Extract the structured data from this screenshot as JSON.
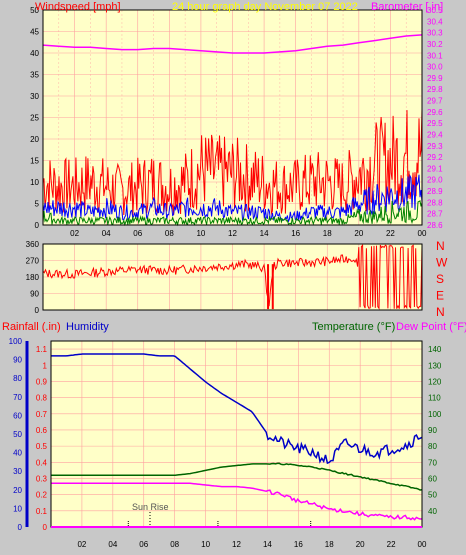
{
  "header": {
    "left_title": "Windspeed [mph]",
    "center_title": "24 hour graph day   November 07 2022",
    "right_title": "Barometer [.in]"
  },
  "colors": {
    "background": "#c8c8c8",
    "plot_bg": "#ffffc8",
    "grid": "#ffa0a0",
    "wind": "#ff0000",
    "gust": "#ff0000",
    "avg_wind": "#0000ff",
    "low_wind": "#008000",
    "barometer": "#ff00ff",
    "humidity": "#0000c8",
    "temperature": "#006400",
    "dew_point": "#ff00ff",
    "rainfall": "#ff0000",
    "title_yellow": "#ffff00"
  },
  "x_tick_labels": [
    "02",
    "04",
    "06",
    "08",
    "10",
    "12",
    "14",
    "16",
    "18",
    "20",
    "22",
    "00"
  ],
  "chart_data": [
    {
      "type": "line",
      "name": "wind-barometer",
      "x_hours": [
        0,
        1,
        2,
        3,
        4,
        5,
        6,
        7,
        8,
        9,
        10,
        11,
        12,
        13,
        14,
        15,
        16,
        17,
        18,
        19,
        20,
        21,
        22,
        23,
        24
      ],
      "series": [
        {
          "name": "Windspeed [mph]",
          "axis": "left",
          "values": [
            10,
            9,
            9,
            10,
            9,
            8,
            9,
            10,
            9,
            10,
            13,
            12,
            12,
            11,
            10,
            9,
            9,
            10,
            10,
            9,
            12,
            14,
            15,
            16,
            17
          ]
        },
        {
          "name": "Avg",
          "axis": "left",
          "values": [
            4,
            4,
            4,
            3,
            4,
            3,
            3,
            4,
            3,
            4,
            4,
            4,
            3,
            3,
            3,
            2,
            2,
            3,
            3,
            3,
            5,
            6,
            7,
            7,
            8
          ]
        },
        {
          "name": "Low",
          "axis": "left",
          "values": [
            2,
            1,
            1,
            1,
            1,
            1,
            1,
            1,
            1,
            1,
            1,
            1,
            1,
            1,
            1,
            1,
            1,
            1,
            1,
            1,
            2,
            2,
            3,
            3,
            3
          ]
        },
        {
          "name": "Barometer [.in]",
          "axis": "right",
          "values": [
            30.19,
            30.18,
            30.17,
            30.17,
            30.16,
            30.15,
            30.15,
            30.16,
            30.16,
            30.15,
            30.14,
            30.13,
            30.12,
            30.12,
            30.12,
            30.13,
            30.14,
            30.16,
            30.18,
            30.19,
            30.21,
            30.23,
            30.25,
            30.27,
            30.28
          ]
        }
      ],
      "left_ylim": [
        0,
        50
      ],
      "left_ticks": [
        "0",
        "5",
        "10",
        "15",
        "20",
        "25",
        "30",
        "35",
        "40",
        "45",
        "50"
      ],
      "right_ylim": [
        28.6,
        30.5
      ],
      "right_ticks": [
        "28.6",
        "28.7",
        "28.8",
        "28.9",
        "29.0",
        "29.1",
        "29.2",
        "29.3",
        "29.4",
        "29.5",
        "29.6",
        "29.7",
        "29.8",
        "29.9",
        "30.0",
        "30.1",
        "30.2",
        "30.3",
        "30.4",
        "30.5"
      ],
      "xlabel": "",
      "grid": true
    },
    {
      "type": "line",
      "name": "wind-direction",
      "x_hours": [
        0,
        2,
        4,
        6,
        8,
        10,
        12,
        13,
        14,
        14.3,
        14.6,
        15,
        16,
        18,
        19.8,
        20,
        21,
        22,
        23,
        24
      ],
      "values": [
        200,
        195,
        210,
        220,
        215,
        230,
        245,
        250,
        230,
        20,
        240,
        260,
        255,
        265,
        285,
        180,
        250,
        240,
        260,
        245
      ],
      "ylim": [
        0,
        360
      ],
      "left_ticks": [
        "0",
        "90",
        "180",
        "270",
        "360"
      ],
      "right_labels": [
        "N",
        "W",
        "S",
        "E",
        "N"
      ],
      "grid": true
    },
    {
      "type": "line",
      "name": "rain-humidity-temperature",
      "x_hours": [
        0,
        1,
        2,
        3,
        4,
        5,
        6,
        7,
        8,
        9,
        10,
        11,
        12,
        13,
        14,
        15,
        16,
        17,
        18,
        19,
        20,
        21,
        22,
        23,
        24
      ],
      "series": [
        {
          "name": "Humidity",
          "axis": "left-humidity",
          "values": [
            92,
            92,
            93,
            93,
            93,
            93,
            93,
            92,
            92,
            85,
            78,
            72,
            67,
            62,
            50,
            45,
            42,
            40,
            35,
            45,
            42,
            40,
            42,
            44,
            50
          ]
        },
        {
          "name": "Temperature (°F)",
          "axis": "right",
          "values": [
            62,
            62,
            62,
            62,
            62,
            62,
            62,
            62,
            62,
            63,
            65,
            67,
            68,
            69,
            69,
            69,
            68,
            67,
            65,
            63,
            61,
            59,
            57,
            55,
            53
          ]
        },
        {
          "name": "Dew Point (°F)",
          "axis": "right",
          "values": [
            57,
            57,
            57,
            57,
            57,
            57,
            57,
            57,
            57,
            57,
            56,
            55,
            55,
            54,
            52,
            50,
            46,
            44,
            41,
            40,
            38,
            37,
            36,
            36,
            35
          ]
        },
        {
          "name": "Rainfall (.in)",
          "axis": "left-rain",
          "values": [
            0,
            0,
            0,
            0,
            0,
            0,
            0,
            0,
            0,
            0,
            0,
            0,
            0,
            0,
            0,
            0,
            0,
            0,
            0,
            0,
            0,
            0,
            0,
            0,
            0
          ]
        }
      ],
      "rain_ylim": [
        0,
        1.15
      ],
      "rain_ticks": [
        "0",
        "0.1",
        "0.2",
        "0.3",
        "0.4",
        "0.5",
        "0.6",
        "0.7",
        "0.8",
        "0.9",
        "1",
        "1.1"
      ],
      "humidity_ylim": [
        0,
        100
      ],
      "humidity_ticks": [
        "0",
        "10",
        "20",
        "30",
        "40",
        "50",
        "60",
        "70",
        "80",
        "90",
        "100"
      ],
      "temp_ylim": [
        30,
        145
      ],
      "temp_ticks": [
        "40",
        "50",
        "60",
        "70",
        "80",
        "90",
        "100",
        "110",
        "120",
        "130",
        "140"
      ],
      "grid": true
    }
  ],
  "panel3_labels": {
    "rain": "Rainfall (.in)",
    "humidity": "Humidity",
    "temperature": "Temperature (°F)",
    "dew_point": "Dew Point (°F)"
  },
  "annotations": {
    "sun_rise": "Sun Rise"
  }
}
